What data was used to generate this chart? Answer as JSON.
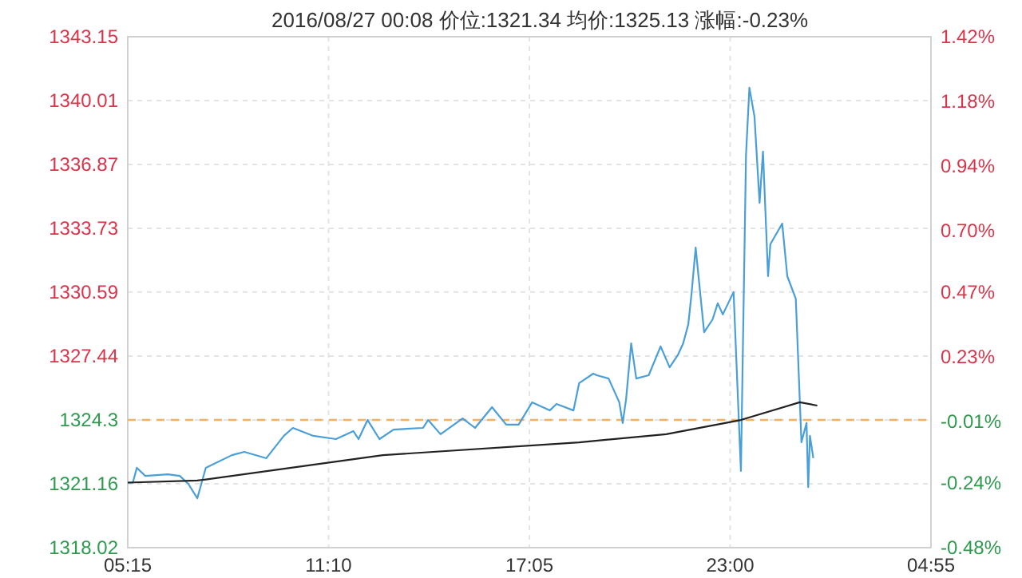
{
  "chart_data": {
    "type": "line",
    "title": "2016/08/27  00:08  价位:1321.34  均价:1325.13  涨幅:-0.23%",
    "xlim": [
      "2016-08-26T05:15",
      "2016-08-27T04:55"
    ],
    "xticks": [
      {
        "value": "2016-08-26T05:15",
        "label": "05:15"
      },
      {
        "value": "2016-08-26T11:10",
        "label": "11:10"
      },
      {
        "value": "2016-08-26T17:05",
        "label": "17:05"
      },
      {
        "value": "2016-08-26T23:00",
        "label": "23:00"
      },
      {
        "value": "2016-08-27T04:55",
        "label": "04:55"
      }
    ],
    "ylim": [
      1318.02,
      1343.15
    ],
    "yticks": [
      1318.02,
      1321.16,
      1324.3,
      1327.44,
      1330.59,
      1333.73,
      1336.87,
      1340.01,
      1343.15
    ],
    "y2lim": [
      -0.48,
      1.42
    ],
    "y2ticks": [
      {
        "value": -0.48,
        "label": "-0.48%"
      },
      {
        "value": -0.24,
        "label": "-0.24%"
      },
      {
        "value": -0.01,
        "label": "-0.01%"
      },
      {
        "value": 0.23,
        "label": "0.23%"
      },
      {
        "value": 0.47,
        "label": "0.47%"
      },
      {
        "value": 0.7,
        "label": "0.70%"
      },
      {
        "value": 0.94,
        "label": "0.94%"
      },
      {
        "value": 1.18,
        "label": "1.18%"
      },
      {
        "value": 1.42,
        "label": "1.42%"
      }
    ],
    "grid": true,
    "marker": "none",
    "line_style": "solid",
    "ref_lines": [
      {
        "axis": "y",
        "value": 1324.3,
        "color": "#f5b060",
        "line_style": "dashed"
      }
    ],
    "series": [
      {
        "color": "#4a9fd8",
        "x": [
          "2016-08-26T05:15",
          "2016-08-26T05:24",
          "2016-08-26T05:31",
          "2016-08-26T05:46",
          "2016-08-26T06:26",
          "2016-08-26T06:47",
          "2016-08-26T07:02",
          "2016-08-26T07:18",
          "2016-08-26T07:33",
          "2016-08-26T08:19",
          "2016-08-26T08:41",
          "2016-08-26T09:20",
          "2016-08-26T09:51",
          "2016-08-26T10:07",
          "2016-08-26T10:43",
          "2016-08-26T11:23",
          "2016-08-26T11:54",
          "2016-08-26T12:03",
          "2016-08-26T12:19",
          "2016-08-26T12:40",
          "2016-08-26T13:05",
          "2016-08-26T13:57",
          "2016-08-26T14:06",
          "2016-08-26T14:28",
          "2016-08-26T15:07",
          "2016-08-26T15:29",
          "2016-08-26T15:59",
          "2016-08-26T16:24",
          "2016-08-26T16:46",
          "2016-08-26T17:10",
          "2016-08-26T17:41",
          "2016-08-26T17:53",
          "2016-08-26T18:23",
          "2016-08-26T18:33",
          "2016-08-26T18:58",
          "2016-08-26T19:04",
          "2016-08-26T19:25",
          "2016-08-26T19:44",
          "2016-08-26T19:50",
          "2016-08-26T19:56",
          "2016-08-26T20:05",
          "2016-08-26T20:14",
          "2016-08-26T20:36",
          "2016-08-26T20:57",
          "2016-08-26T21:13",
          "2016-08-26T21:28",
          "2016-08-26T21:37",
          "2016-08-26T21:46",
          "2016-08-26T21:52",
          "2016-08-26T21:59",
          "2016-08-26T22:08",
          "2016-08-26T22:14",
          "2016-08-26T22:29",
          "2016-08-26T22:38",
          "2016-08-26T22:47",
          "2016-08-26T23:06",
          "2016-08-26T23:19",
          "2016-08-26T23:28",
          "2016-08-26T23:34",
          "2016-08-26T23:43",
          "2016-08-26T23:52",
          "2016-08-26T23:58",
          "2016-08-27T00:07",
          "2016-08-27T00:11",
          "2016-08-27T00:32",
          "2016-08-27T00:41",
          "2016-08-27T00:56",
          "2016-08-27T01:06",
          "2016-08-27T01:15",
          "2016-08-27T01:18",
          "2016-08-27T01:21",
          "2016-08-27T01:27"
        ],
        "values": [
          1321.22,
          1321.22,
          1321.95,
          1321.55,
          1321.63,
          1321.55,
          1321.16,
          1320.45,
          1321.95,
          1322.57,
          1322.73,
          1322.42,
          1323.52,
          1323.91,
          1323.52,
          1323.36,
          1323.75,
          1323.36,
          1324.3,
          1323.36,
          1323.83,
          1323.91,
          1324.3,
          1323.6,
          1324.38,
          1323.91,
          1324.93,
          1324.07,
          1324.07,
          1325.17,
          1324.77,
          1325.09,
          1324.77,
          1326.11,
          1326.58,
          1326.5,
          1326.34,
          1325.17,
          1324.15,
          1325.32,
          1328.07,
          1326.34,
          1326.5,
          1327.92,
          1326.89,
          1327.52,
          1328.07,
          1329.01,
          1330.59,
          1332.78,
          1330.27,
          1328.62,
          1329.25,
          1330.04,
          1329.49,
          1330.59,
          1321.79,
          1337.34,
          1340.64,
          1339.22,
          1334.98,
          1337.5,
          1331.37,
          1332.94,
          1333.96,
          1331.37,
          1330.27,
          1323.2,
          1324.15,
          1321.0,
          1323.52,
          1322.42
        ]
      },
      {
        "color": "#222222",
        "x": [
          "2016-08-26T05:15",
          "2016-08-26T07:18",
          "2016-08-26T12:46",
          "2016-08-26T18:33",
          "2016-08-26T21:07",
          "2016-08-26T23:19",
          "2016-08-27T01:03",
          "2016-08-27T01:34"
        ],
        "values": [
          1321.22,
          1321.32,
          1322.57,
          1323.2,
          1323.6,
          1324.3,
          1325.17,
          1325.01
        ]
      }
    ]
  }
}
